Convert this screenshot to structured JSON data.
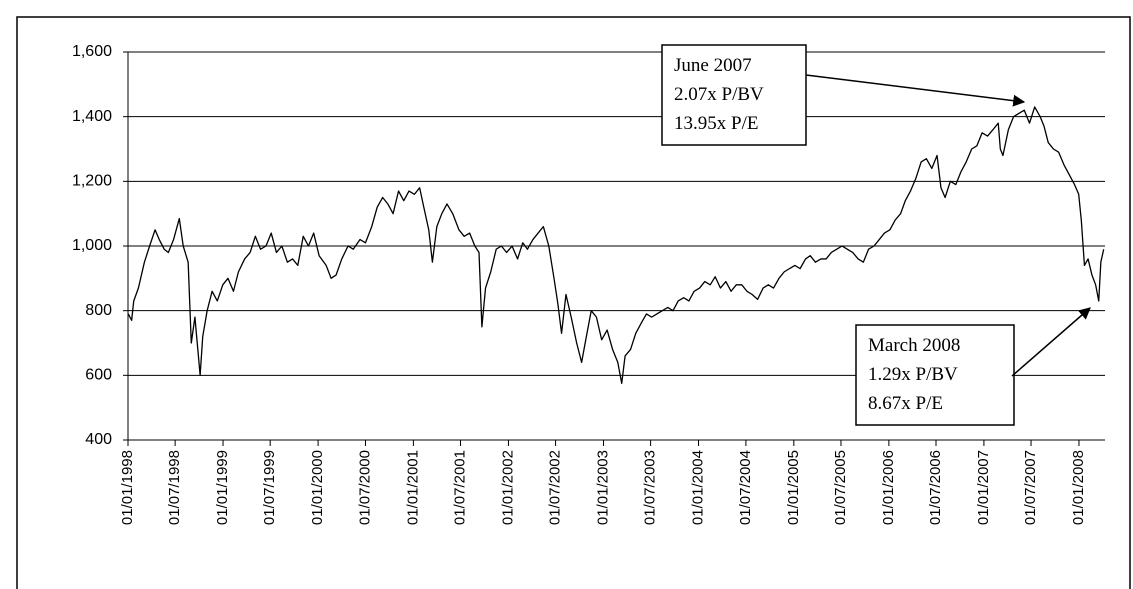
{
  "chart_data": {
    "type": "line",
    "color": "#000000",
    "grid": true,
    "ylim": [
      400,
      1600
    ],
    "yticks": [
      400,
      600,
      800,
      {
        "value": 1000,
        "label": "1,000"
      },
      {
        "value": 1200,
        "label": "1,200"
      },
      {
        "value": 1400,
        "label": "1,400"
      },
      {
        "value": 1600,
        "label": "1,600"
      }
    ],
    "xlim": [
      "01/01/1998",
      "10/04/2008"
    ],
    "xticks": [
      "01/01/1998",
      "01/07/1998",
      "01/01/1999",
      "01/07/1999",
      "01/01/2000",
      "01/07/2000",
      "01/01/2001",
      "01/07/2001",
      "01/01/2002",
      "01/07/2002",
      "01/01/2003",
      "01/07/2003",
      "01/01/2004",
      "01/07/2004",
      "01/01/2005",
      "01/07/2005",
      "01/01/2006",
      "01/07/2006",
      "01/01/2007",
      "01/07/2007",
      "01/01/2008"
    ],
    "annotations": [
      {
        "lines": [
          "June 2007",
          "2.07x P/BV",
          "13.95x P/E"
        ]
      },
      {
        "lines": [
          "March 2008",
          "1.29x P/BV",
          "8.67x P/E"
        ]
      }
    ],
    "x": [
      "02/01/1998",
      "15/01/1998",
      "23/01/1998",
      "10/02/1998",
      "05/03/1998",
      "25/03/1998",
      "15/04/1998",
      "01/05/1998",
      "20/05/1998",
      "05/06/1998",
      "25/06/1998",
      "17/07/1998",
      "01/08/1998",
      "20/08/1998",
      "01/09/1998",
      "15/09/1998",
      "05/10/1998",
      "15/10/1998",
      "01/11/1998",
      "20/11/1998",
      "10/12/1998",
      "31/12/1998",
      "20/01/1999",
      "10/02/1999",
      "01/03/1999",
      "25/03/1999",
      "15/04/1999",
      "05/05/1999",
      "25/05/1999",
      "15/06/1999",
      "05/07/1999",
      "25/07/1999",
      "15/08/1999",
      "05/09/1999",
      "25/09/1999",
      "15/10/1999",
      "05/11/1999",
      "25/11/1999",
      "15/12/1999",
      "05/01/2000",
      "01/02/2000",
      "20/02/2000",
      "10/03/2000",
      "01/04/2000",
      "25/04/2000",
      "15/05/2000",
      "10/06/2000",
      "01/07/2000",
      "25/07/2000",
      "15/08/2000",
      "05/09/2000",
      "25/09/2000",
      "15/10/2000",
      "05/11/2000",
      "25/11/2000",
      "15/12/2000",
      "05/01/2001",
      "25/01/2001",
      "10/02/2001",
      "01/03/2001",
      "15/03/2001",
      "01/04/2001",
      "20/04/2001",
      "10/05/2001",
      "01/06/2001",
      "25/06/2001",
      "15/07/2001",
      "05/08/2001",
      "25/08/2001",
      "10/09/2001",
      "21/09/2001",
      "05/10/2001",
      "25/10/2001",
      "15/11/2001",
      "05/12/2001",
      "25/12/2001",
      "15/01/2002",
      "05/02/2002",
      "25/02/2002",
      "15/03/2002",
      "05/04/2002",
      "25/04/2002",
      "15/05/2002",
      "05/06/2002",
      "25/06/2002",
      "10/07/2002",
      "24/07/2002",
      "10/08/2002",
      "30/08/2002",
      "20/09/2002",
      "09/10/2002",
      "25/10/2002",
      "15/11/2002",
      "05/12/2002",
      "25/12/2002",
      "15/01/2003",
      "05/02/2003",
      "25/02/2003",
      "12/03/2003",
      "25/03/2003",
      "15/04/2003",
      "05/05/2003",
      "25/05/2003",
      "15/06/2003",
      "05/07/2003",
      "25/07/2003",
      "15/08/2003",
      "05/09/2003",
      "25/09/2003",
      "15/10/2003",
      "05/11/2003",
      "25/11/2003",
      "15/12/2003",
      "05/01/2004",
      "25/01/2004",
      "15/02/2004",
      "05/03/2004",
      "25/03/2004",
      "15/04/2004",
      "05/05/2004",
      "25/05/2004",
      "15/06/2004",
      "05/07/2004",
      "25/07/2004",
      "15/08/2004",
      "05/09/2004",
      "25/09/2004",
      "15/10/2004",
      "05/11/2004",
      "25/11/2004",
      "15/12/2004",
      "05/01/2005",
      "25/01/2005",
      "15/02/2005",
      "05/03/2005",
      "25/03/2005",
      "15/04/2005",
      "05/05/2005",
      "25/05/2005",
      "15/06/2005",
      "05/07/2005",
      "25/07/2005",
      "15/08/2005",
      "05/09/2005",
      "25/09/2005",
      "15/10/2005",
      "05/11/2005",
      "25/11/2005",
      "15/12/2005",
      "05/01/2006",
      "25/01/2006",
      "15/02/2006",
      "05/03/2006",
      "25/03/2006",
      "15/04/2006",
      "05/05/2006",
      "25/05/2006",
      "15/06/2006",
      "05/07/2006",
      "20/07/2006",
      "05/08/2006",
      "25/08/2006",
      "15/09/2006",
      "05/10/2006",
      "25/10/2006",
      "15/11/2006",
      "05/12/2006",
      "25/12/2006",
      "15/01/2007",
      "05/02/2007",
      "25/02/2007",
      "05/03/2007",
      "15/03/2007",
      "05/04/2007",
      "25/04/2007",
      "15/05/2007",
      "05/06/2007",
      "25/06/2007",
      "15/07/2007",
      "05/08/2007",
      "20/08/2007",
      "05/09/2007",
      "25/09/2007",
      "15/10/2007",
      "05/11/2007",
      "25/11/2007",
      "15/12/2007",
      "31/12/2007",
      "10/01/2008",
      "22/01/2008",
      "05/02/2008",
      "20/02/2008",
      "05/03/2008",
      "17/03/2008",
      "25/03/2008",
      "05/04/2008"
    ],
    "values": [
      790,
      770,
      830,
      870,
      950,
      1000,
      1050,
      1020,
      990,
      980,
      1020,
      1085,
      1000,
      950,
      700,
      780,
      600,
      720,
      800,
      860,
      830,
      880,
      900,
      860,
      920,
      960,
      980,
      1030,
      990,
      1000,
      1040,
      980,
      1000,
      950,
      960,
      940,
      1030,
      1000,
      1040,
      970,
      940,
      900,
      910,
      960,
      1000,
      990,
      1020,
      1010,
      1060,
      1120,
      1150,
      1130,
      1100,
      1170,
      1140,
      1170,
      1160,
      1180,
      1120,
      1050,
      950,
      1060,
      1100,
      1130,
      1100,
      1050,
      1030,
      1040,
      1000,
      980,
      750,
      870,
      920,
      990,
      1000,
      980,
      1000,
      960,
      1010,
      990,
      1020,
      1040,
      1060,
      1000,
      900,
      820,
      730,
      850,
      780,
      700,
      640,
      710,
      800,
      780,
      710,
      740,
      680,
      640,
      575,
      660,
      680,
      730,
      760,
      790,
      780,
      790,
      800,
      810,
      800,
      830,
      840,
      830,
      860,
      870,
      890,
      880,
      905,
      870,
      890,
      860,
      880,
      880,
      860,
      850,
      835,
      870,
      880,
      870,
      900,
      920,
      930,
      940,
      930,
      960,
      970,
      950,
      960,
      960,
      980,
      990,
      1000,
      990,
      980,
      960,
      950,
      990,
      1000,
      1020,
      1040,
      1050,
      1080,
      1100,
      1140,
      1170,
      1210,
      1260,
      1270,
      1240,
      1280,
      1180,
      1150,
      1200,
      1190,
      1230,
      1260,
      1300,
      1310,
      1350,
      1340,
      1360,
      1380,
      1300,
      1280,
      1360,
      1400,
      1410,
      1420,
      1380,
      1430,
      1400,
      1370,
      1320,
      1300,
      1290,
      1250,
      1220,
      1190,
      1160,
      1080,
      940,
      960,
      910,
      880,
      830,
      950,
      990
    ]
  }
}
